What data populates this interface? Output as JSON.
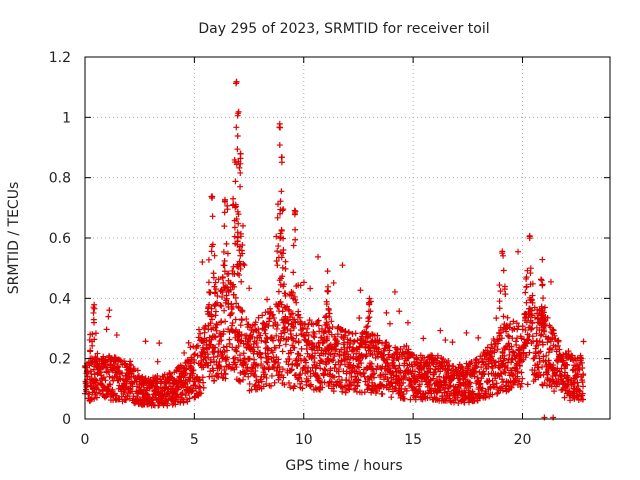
{
  "chart_data": {
    "type": "scatter",
    "title": "Day 295 of 2023, SRMTID for receiver toil",
    "xlabel": "GPS time / hours",
    "ylabel": "SRMTID / TECUs",
    "xlim": [
      0,
      24
    ],
    "ylim": [
      0,
      1.2
    ],
    "xticks": [
      0,
      5,
      10,
      15,
      20
    ],
    "xtick_labels": [
      "0",
      "5",
      "10",
      "15",
      "20"
    ],
    "yticks": [
      0,
      0.2,
      0.4,
      0.6,
      0.8,
      1.0,
      1.2
    ],
    "ytick_labels": [
      "0",
      "0.2",
      "0.4",
      "0.6",
      "0.8",
      "1",
      "1.2"
    ],
    "grid": true,
    "marker": "plus",
    "color": "#e00000",
    "series": [
      {
        "name": "SRMTID",
        "baseline_profile": {
          "x": [
            0,
            1,
            2,
            3,
            4,
            5,
            5.5,
            6,
            6.5,
            7,
            7.5,
            8,
            8.5,
            9,
            9.5,
            10,
            11,
            12,
            13,
            14,
            15,
            16,
            17,
            18,
            19,
            20,
            20.5,
            21,
            21.5,
            22,
            22.8
          ],
          "y": [
            0.12,
            0.14,
            0.12,
            0.09,
            0.1,
            0.14,
            0.22,
            0.28,
            0.3,
            0.28,
            0.2,
            0.22,
            0.24,
            0.26,
            0.22,
            0.22,
            0.21,
            0.19,
            0.19,
            0.16,
            0.14,
            0.14,
            0.11,
            0.13,
            0.19,
            0.23,
            0.25,
            0.24,
            0.18,
            0.14,
            0.13
          ]
        },
        "peaks": [
          {
            "x": 0.4,
            "y": 0.38
          },
          {
            "x": 5.8,
            "y": 0.75
          },
          {
            "x": 6.4,
            "y": 0.73
          },
          {
            "x": 6.9,
            "y": 1.12
          },
          {
            "x": 7.0,
            "y": 1.02
          },
          {
            "x": 7.1,
            "y": 0.88
          },
          {
            "x": 8.9,
            "y": 0.98
          },
          {
            "x": 9.0,
            "y": 0.87
          },
          {
            "x": 9.6,
            "y": 0.7
          },
          {
            "x": 11.1,
            "y": 0.44
          },
          {
            "x": 13.0,
            "y": 0.4
          },
          {
            "x": 19.1,
            "y": 0.56
          },
          {
            "x": 20.3,
            "y": 0.61
          },
          {
            "x": 20.9,
            "y": 0.46
          }
        ],
        "near_zero_points": [
          {
            "x": 21.0,
            "y": 0.0
          },
          {
            "x": 21.4,
            "y": 0.0
          }
        ]
      }
    ]
  }
}
